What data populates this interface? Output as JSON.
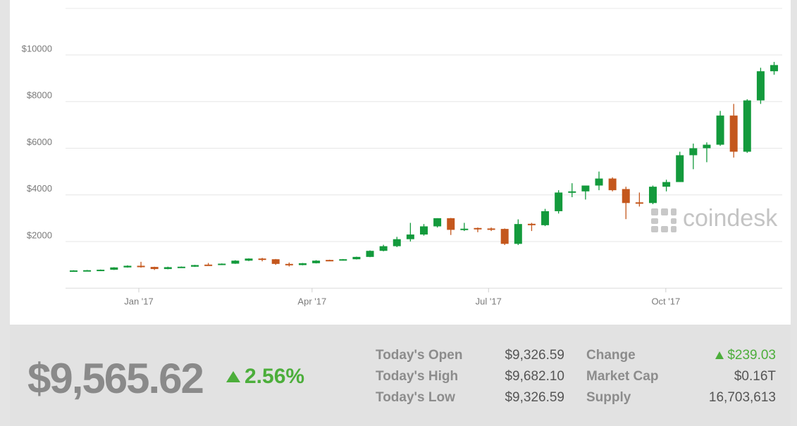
{
  "chart_data": {
    "type": "candlestick",
    "watermark": "coindesk",
    "categories": [
      null,
      null,
      null,
      null,
      null,
      null,
      null,
      null,
      null,
      null,
      null,
      null,
      null,
      null,
      null,
      null,
      null,
      null,
      null,
      null,
      null,
      null,
      null,
      null,
      null,
      null,
      null,
      null,
      null,
      null,
      null,
      null,
      null,
      null,
      null,
      null,
      null,
      null,
      null,
      null,
      null,
      null,
      null,
      null,
      null,
      null,
      null,
      null,
      null,
      null,
      null,
      null,
      null
    ],
    "open": [
      730,
      760,
      770,
      790,
      890,
      960,
      910,
      820,
      900,
      920,
      1010,
      1000,
      1050,
      1180,
      1270,
      1240,
      1040,
      990,
      1070,
      1210,
      1190,
      1240,
      1340,
      1600,
      1800,
      2100,
      2300,
      2650,
      3000,
      2500,
      2580,
      2560,
      2540,
      1900,
      2760,
      2700,
      3300,
      4100,
      4150,
      4400,
      4700,
      4250,
      3680,
      3650,
      4350,
      4550,
      5700,
      6000,
      6150,
      7400,
      5850,
      8050,
      9300
    ],
    "high": [
      770,
      780,
      800,
      900,
      980,
      1130,
      920,
      920,
      930,
      1000,
      1080,
      1060,
      1200,
      1280,
      1300,
      1250,
      1100,
      1080,
      1200,
      1220,
      1250,
      1350,
      1620,
      1860,
      2200,
      2800,
      2750,
      3000,
      3010,
      2800,
      2600,
      2600,
      2560,
      2950,
      2800,
      3400,
      4200,
      4500,
      4400,
      5000,
      4750,
      4350,
      4100,
      4400,
      4650,
      5850,
      6200,
      6250,
      7600,
      7900,
      8100,
      9450,
      9700
    ],
    "low": [
      720,
      750,
      760,
      780,
      880,
      880,
      780,
      810,
      880,
      910,
      960,
      990,
      1040,
      1160,
      1150,
      1000,
      930,
      980,
      1060,
      1160,
      1180,
      1230,
      1330,
      1580,
      1760,
      2000,
      2250,
      2600,
      2280,
      2450,
      2400,
      2450,
      1850,
      1850,
      2450,
      2660,
      3200,
      3900,
      3800,
      4200,
      4150,
      2960,
      3500,
      3600,
      4150,
      4550,
      5100,
      5400,
      6100,
      5600,
      5800,
      7900,
      9150
    ],
    "close": [
      760,
      770,
      790,
      890,
      960,
      900,
      820,
      900,
      920,
      990,
      990,
      1050,
      1180,
      1270,
      1240,
      1040,
      990,
      1070,
      1180,
      1190,
      1240,
      1340,
      1600,
      1800,
      2100,
      2300,
      2650,
      3000,
      2500,
      2550,
      2520,
      2500,
      1900,
      2750,
      2700,
      3300,
      4100,
      4150,
      4400,
      4700,
      4200,
      3650,
      3650,
      4350,
      4550,
      5700,
      6000,
      6150,
      7400,
      5850,
      8050,
      9300,
      9566
    ],
    "up_color": "#139a3c",
    "down_color": "#c4571d",
    "xlim": [
      -0.6,
      52.6
    ],
    "xticks": [
      {
        "value": 4.84,
        "label": "Jan '17"
      },
      {
        "value": 17.7,
        "label": "Apr '17"
      },
      {
        "value": 30.8,
        "label": "Jul '17"
      },
      {
        "value": 43.96,
        "label": "Oct '17"
      }
    ],
    "ylim": [
      0,
      12000
    ],
    "yticks": [
      {
        "value": 2000,
        "label": "$2000"
      },
      {
        "value": 4000,
        "label": "$4000"
      },
      {
        "value": 6000,
        "label": "$6000"
      },
      {
        "value": 8000,
        "label": "$8000"
      },
      {
        "value": 10000,
        "label": "$10000"
      }
    ],
    "grid": true
  },
  "summary": {
    "price": "$9,565.62",
    "change_percent": "2.56%",
    "stats": [
      {
        "label": "Today's Open",
        "value": "$9,326.59"
      },
      {
        "label": "Today's High",
        "value": "$9,682.10"
      },
      {
        "label": "Today's Low",
        "value": "$9,326.59"
      },
      {
        "label": "Change",
        "value": "$239.03"
      },
      {
        "label": "Market Cap",
        "value": "$0.16T"
      },
      {
        "label": "Supply",
        "value": "16,703,613"
      }
    ]
  }
}
